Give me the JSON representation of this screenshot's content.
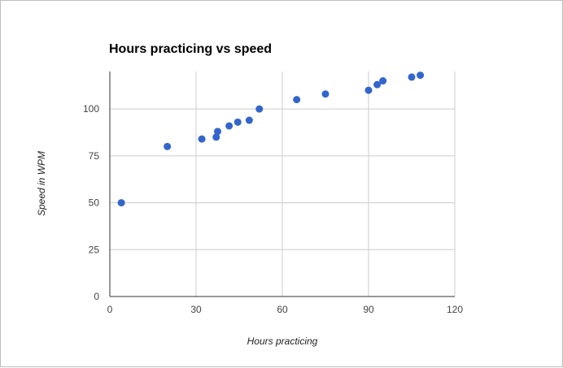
{
  "chart_data": {
    "type": "scatter",
    "title": "Hours practicing vs speed",
    "xlabel": "Hours practicing",
    "ylabel": "Speed in WPM",
    "xlim": [
      0,
      120
    ],
    "ylim": [
      0,
      120
    ],
    "xticks": [
      0,
      30,
      60,
      90,
      120
    ],
    "yticks": [
      0,
      25,
      50,
      75,
      100
    ],
    "grid": true,
    "legend": "none",
    "point_color": "#3366cc",
    "points": [
      {
        "x": 4,
        "y": 50
      },
      {
        "x": 20,
        "y": 80
      },
      {
        "x": 32,
        "y": 84
      },
      {
        "x": 37,
        "y": 85
      },
      {
        "x": 37.5,
        "y": 88
      },
      {
        "x": 41.5,
        "y": 91
      },
      {
        "x": 44.5,
        "y": 93
      },
      {
        "x": 48.5,
        "y": 94
      },
      {
        "x": 52,
        "y": 100
      },
      {
        "x": 65,
        "y": 105
      },
      {
        "x": 75,
        "y": 108
      },
      {
        "x": 90,
        "y": 110
      },
      {
        "x": 93,
        "y": 113
      },
      {
        "x": 95,
        "y": 115
      },
      {
        "x": 105,
        "y": 117
      },
      {
        "x": 108,
        "y": 118
      }
    ]
  }
}
